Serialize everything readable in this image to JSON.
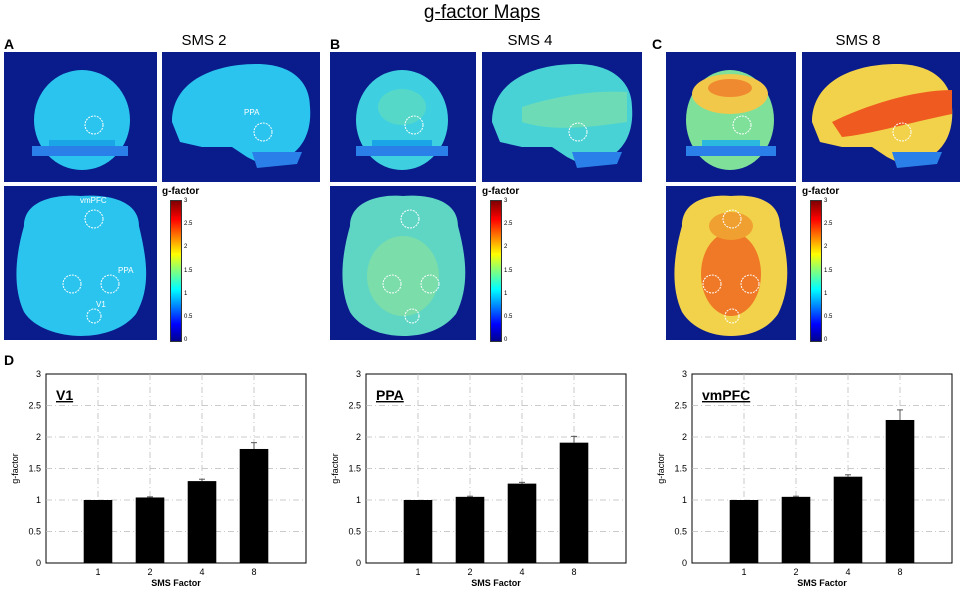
{
  "figure_title": "g-factor Maps",
  "panels": {
    "A": {
      "letter": "A",
      "title": "SMS 2",
      "labels": {
        "sag_ppa": "PPA",
        "ax_vmpfc": "vmPFC",
        "ax_ppa": "PPA",
        "ax_v1": "V1"
      }
    },
    "B": {
      "letter": "B",
      "title": "SMS 4"
    },
    "C": {
      "letter": "C",
      "title": "SMS 8"
    },
    "D": {
      "letter": "D"
    }
  },
  "colorbar": {
    "label": "g-factor",
    "ticks": [
      "3",
      "2.5",
      "2",
      "1.5",
      "1",
      "0.5",
      "0"
    ]
  },
  "colors": {
    "bar": "#000000",
    "mri_bg": "#0a1b8c"
  },
  "chart_data": [
    {
      "type": "bar",
      "title": "V1",
      "xlabel": "SMS Factor",
      "ylabel": "g-factor",
      "categories": [
        "1",
        "2",
        "4",
        "8"
      ],
      "values": [
        1.0,
        1.04,
        1.3,
        1.81
      ],
      "errors": [
        0,
        0.01,
        0.03,
        0.1
      ],
      "ylim": [
        0,
        3
      ],
      "yticks": [
        "0",
        "0.5",
        "1",
        "1.5",
        "2",
        "2.5",
        "3"
      ],
      "grid": true
    },
    {
      "type": "bar",
      "title": "PPA",
      "xlabel": "SMS Factor",
      "ylabel": "g-factor",
      "categories": [
        "1",
        "2",
        "4",
        "8"
      ],
      "values": [
        1.0,
        1.05,
        1.26,
        1.91
      ],
      "errors": [
        0,
        0.01,
        0.02,
        0.1
      ],
      "ylim": [
        0,
        3
      ],
      "yticks": [
        "0",
        "0.5",
        "1",
        "1.5",
        "2",
        "2.5",
        "3"
      ],
      "grid": true
    },
    {
      "type": "bar",
      "title": "vmPFC",
      "xlabel": "SMS Factor",
      "ylabel": "g-factor",
      "categories": [
        "1",
        "2",
        "4",
        "8"
      ],
      "values": [
        1.0,
        1.05,
        1.37,
        2.27
      ],
      "errors": [
        0,
        0.01,
        0.03,
        0.16
      ],
      "ylim": [
        0,
        3
      ],
      "yticks": [
        "0",
        "0.5",
        "1",
        "1.5",
        "2",
        "2.5",
        "3"
      ],
      "grid": true
    }
  ]
}
